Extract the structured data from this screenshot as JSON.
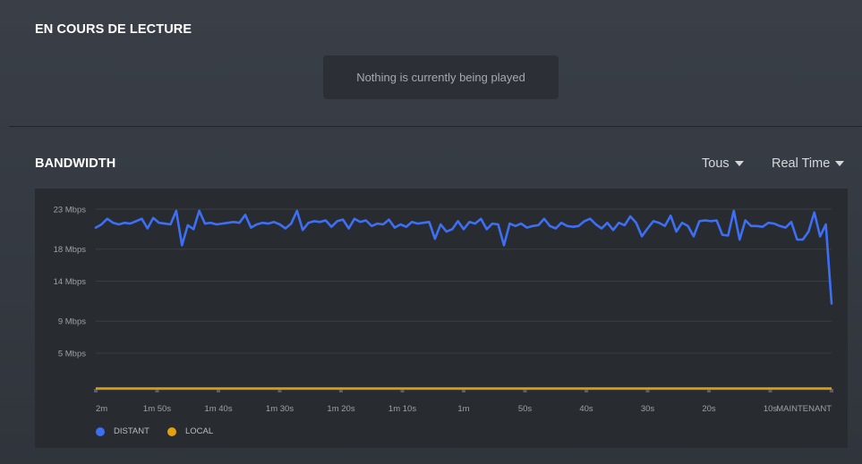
{
  "now_playing": {
    "title": "EN COURS DE LECTURE",
    "empty_message": "Nothing is currently being played"
  },
  "bandwidth": {
    "title": "BANDWIDTH",
    "filter_label": "Tous",
    "period_label": "Real Time"
  },
  "colors": {
    "distant": "#3d6ff5",
    "local": "#e5a00d"
  },
  "chart_data": {
    "type": "line",
    "yticks": [
      "23 Mbps",
      "18 Mbps",
      "14 Mbps",
      "9 Mbps",
      "5 Mbps"
    ],
    "ytick_values": [
      23,
      18,
      14,
      9,
      5
    ],
    "xticks": [
      "2m",
      "1m 50s",
      "1m 40s",
      "1m 30s",
      "1m 20s",
      "1m 10s",
      "1m",
      "50s",
      "40s",
      "30s",
      "20s",
      "10s",
      "MAINTENANT"
    ],
    "ylim": [
      0,
      25
    ],
    "series": [
      {
        "name": "DISTANT",
        "values": [
          20.7,
          21.1,
          21.8,
          21.3,
          21.1,
          21.3,
          21.2,
          21.5,
          21.8,
          20.6,
          21.9,
          21.3,
          21.2,
          21.1,
          22.8,
          18.5,
          21.0,
          20.5,
          22.8,
          21.2,
          21.3,
          21.1,
          21.2,
          21.3,
          21.4,
          21.3,
          22.3,
          20.7,
          21.1,
          21.3,
          21.2,
          21.4,
          21.1,
          20.6,
          21.2,
          22.8,
          20.4,
          21.3,
          21.5,
          21.4,
          21.6,
          20.8,
          21.5,
          21.7,
          20.6,
          21.8,
          21.4,
          21.6,
          20.9,
          21.2,
          21.1,
          21.7,
          20.7,
          21.1,
          20.8,
          21.4,
          21.2,
          21.3,
          21.4,
          19.3,
          21.1,
          20.2,
          20.5,
          21.5,
          20.5,
          21.4,
          21.2,
          21.8,
          20.5,
          21.2,
          21.1,
          18.5,
          21.2,
          20.9,
          21.2,
          20.7,
          20.9,
          21.0,
          21.8,
          20.9,
          20.6,
          21.3,
          20.9,
          20.8,
          20.9,
          21.5,
          21.8,
          21.1,
          20.6,
          21.3,
          20.4,
          21.3,
          21.0,
          22.1,
          21.3,
          19.6,
          20.6,
          21.5,
          21.3,
          20.9,
          22.2,
          20.2,
          21.3,
          20.9,
          19.6,
          21.5,
          21.6,
          21.5,
          21.6,
          19.8,
          19.7,
          22.8,
          19.2,
          21.6,
          20.9,
          20.9,
          20.8,
          21.3,
          21.2,
          20.9,
          20.7,
          21.4,
          19.2,
          19.2,
          20.2,
          22.6,
          19.6,
          21.1,
          11.2
        ]
      },
      {
        "name": "LOCAL",
        "values": [
          0.2,
          0.2
        ]
      }
    ]
  }
}
